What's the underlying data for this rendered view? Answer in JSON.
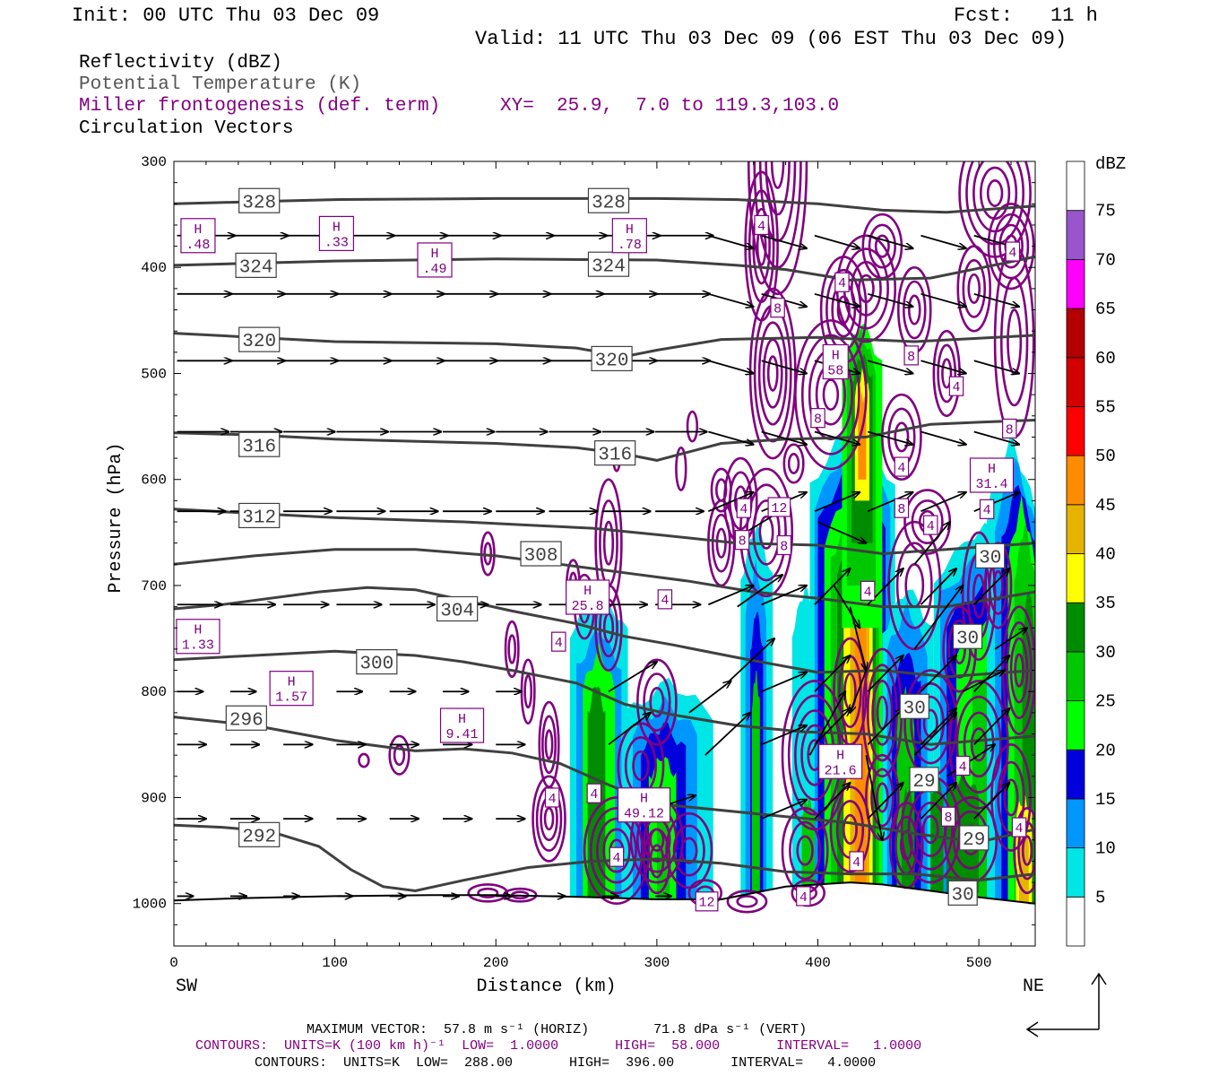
{
  "header": {
    "init": "Init: 00 UTC Thu 03 Dec 09",
    "fcst_label": "Fcst:",
    "fcst_value": "11 h",
    "valid": "Valid: 11 UTC Thu 03 Dec 09 (06 EST Thu 03 Dec 09)"
  },
  "fields": {
    "reflectivity": "Reflectivity (dBZ)",
    "theta": "Potential Temperature (K)",
    "frontogenesis": "Miller frontogenesis (def. term)",
    "xy": "XY=  25.9,  7.0 to 119.3,103.0",
    "vectors": "Circulation Vectors"
  },
  "footer": {
    "max_vector": "MAXIMUM VECTOR:  57.8 m s⁻¹ (HORIZ)        71.8 dPa s⁻¹ (VERT)",
    "contours_fronto": "CONTOURS:  UNITS=K (100 km h)⁻¹  LOW=  1.0000       HIGH=  58.000       INTERVAL=   1.0000",
    "contours_theta": "CONTOURS:  UNITS=K  LOW=  288.00       HIGH=  396.00       INTERVAL=   4.0000"
  },
  "colors": {
    "theta": "#404040",
    "fronto": "#800080",
    "vector": "#000000"
  },
  "chart_data": {
    "type": "cross-section",
    "xlabel": "Distance (km)",
    "ylabel": "Pressure (hPa)",
    "xlim": [
      0,
      535
    ],
    "ylim": [
      1040,
      300
    ],
    "x_ticks": [
      0,
      100,
      200,
      300,
      400,
      500
    ],
    "y_ticks": [
      300,
      400,
      500,
      600,
      700,
      800,
      900,
      1000
    ],
    "x_end_labels": {
      "left": "SW",
      "right": "NE"
    },
    "colorbar": {
      "unit": "dBZ",
      "levels": [
        5,
        10,
        15,
        20,
        25,
        30,
        35,
        40,
        45,
        50,
        55,
        60,
        65,
        70,
        75
      ],
      "colors": [
        "#ffffff",
        "#00e5e5",
        "#0096ff",
        "#0000dd",
        "#00ff00",
        "#00c800",
        "#008c00",
        "#ffff00",
        "#e6b400",
        "#ff8c00",
        "#ff0000",
        "#d20000",
        "#b40000",
        "#ff00ff",
        "#9955cc"
      ]
    },
    "theta_contours": [
      {
        "value": 328,
        "points": [
          [
            0,
            340
          ],
          [
            50,
            338
          ],
          [
            100,
            336
          ],
          [
            200,
            335
          ],
          [
            300,
            335
          ],
          [
            350,
            336
          ],
          [
            400,
            340
          ],
          [
            440,
            346
          ],
          [
            480,
            348
          ],
          [
            535,
            342
          ]
        ]
      },
      {
        "value": 324,
        "points": [
          [
            0,
            398
          ],
          [
            50,
            396
          ],
          [
            100,
            394
          ],
          [
            200,
            392
          ],
          [
            300,
            393
          ],
          [
            350,
            398
          ],
          [
            380,
            402
          ],
          [
            420,
            412
          ],
          [
            470,
            410
          ],
          [
            535,
            390
          ]
        ]
      },
      {
        "value": 320,
        "points": [
          [
            0,
            462
          ],
          [
            50,
            466
          ],
          [
            100,
            470
          ],
          [
            200,
            472
          ],
          [
            250,
            476
          ],
          [
            280,
            484
          ],
          [
            300,
            478
          ],
          [
            340,
            468
          ],
          [
            400,
            466
          ],
          [
            460,
            470
          ],
          [
            535,
            464
          ]
        ]
      },
      {
        "value": 316,
        "points": [
          [
            0,
            556
          ],
          [
            50,
            558
          ],
          [
            100,
            562
          ],
          [
            200,
            566
          ],
          [
            250,
            570
          ],
          [
            280,
            576
          ],
          [
            300,
            582
          ],
          [
            340,
            566
          ],
          [
            380,
            562
          ],
          [
            430,
            560
          ],
          [
            470,
            548
          ],
          [
            500,
            546
          ],
          [
            535,
            544
          ]
        ]
      },
      {
        "value": 312,
        "points": [
          [
            0,
            628
          ],
          [
            50,
            632
          ],
          [
            100,
            636
          ],
          [
            180,
            640
          ],
          [
            220,
            643
          ],
          [
            260,
            646
          ],
          [
            300,
            652
          ],
          [
            350,
            660
          ],
          [
            400,
            662
          ],
          [
            440,
            670
          ],
          [
            480,
            666
          ],
          [
            535,
            660
          ]
        ]
      },
      {
        "value": 308,
        "points": [
          [
            0,
            680
          ],
          [
            50,
            672
          ],
          [
            100,
            666
          ],
          [
            150,
            666
          ],
          [
            200,
            672
          ],
          [
            240,
            680
          ],
          [
            280,
            688
          ],
          [
            320,
            696
          ],
          [
            360,
            706
          ],
          [
            400,
            712
          ],
          [
            440,
            720
          ],
          [
            480,
            720
          ],
          [
            535,
            706
          ]
        ]
      },
      {
        "value": 304,
        "points": [
          [
            0,
            722
          ],
          [
            30,
            718
          ],
          [
            60,
            712
          ],
          [
            90,
            706
          ],
          [
            120,
            702
          ],
          [
            150,
            704
          ],
          [
            180,
            714
          ],
          [
            210,
            724
          ],
          [
            250,
            736
          ],
          [
            280,
            748
          ],
          [
            310,
            756
          ],
          [
            350,
            768
          ],
          [
            400,
            782
          ],
          [
            440,
            780
          ],
          [
            480,
            786
          ],
          [
            535,
            780
          ]
        ]
      },
      {
        "value": 300,
        "points": [
          [
            0,
            770
          ],
          [
            50,
            766
          ],
          [
            100,
            762
          ],
          [
            150,
            766
          ],
          [
            180,
            772
          ],
          [
            210,
            780
          ],
          [
            250,
            792
          ],
          [
            280,
            812
          ],
          [
            310,
            822
          ],
          [
            350,
            832
          ],
          [
            390,
            838
          ],
          [
            430,
            840
          ],
          [
            470,
            850
          ],
          [
            535,
            842
          ]
        ]
      },
      {
        "value": 296,
        "points": [
          [
            0,
            824
          ],
          [
            50,
            832
          ],
          [
            100,
            846
          ],
          [
            150,
            856
          ],
          [
            180,
            854
          ],
          [
            210,
            858
          ],
          [
            240,
            868
          ],
          [
            270,
            888
          ],
          [
            300,
            906
          ],
          [
            340,
            912
          ],
          [
            380,
            918
          ],
          [
            420,
            924
          ],
          [
            460,
            934
          ],
          [
            500,
            942
          ],
          [
            535,
            930
          ]
        ]
      },
      {
        "value": 292,
        "points": [
          [
            0,
            926
          ],
          [
            30,
            928
          ],
          [
            60,
            932
          ],
          [
            90,
            946
          ],
          [
            110,
            968
          ],
          [
            130,
            984
          ],
          [
            150,
            988
          ],
          [
            180,
            978
          ],
          [
            220,
            966
          ],
          [
            260,
            960
          ],
          [
            300,
            958
          ],
          [
            340,
            962
          ],
          [
            380,
            970
          ],
          [
            420,
            972
          ],
          [
            460,
            972
          ],
          [
            500,
            978
          ],
          [
            535,
            972
          ]
        ]
      }
    ],
    "theta_labels": [
      {
        "text": "328",
        "x": 53,
        "p": 337
      },
      {
        "text": "328",
        "x": 270,
        "p": 337
      },
      {
        "text": "324",
        "x": 51,
        "p": 398
      },
      {
        "text": "324",
        "x": 270,
        "p": 397
      },
      {
        "text": "320",
        "x": 53,
        "p": 468
      },
      {
        "text": "320",
        "x": 272,
        "p": 486
      },
      {
        "text": "316",
        "x": 53,
        "p": 567
      },
      {
        "text": "316",
        "x": 274,
        "p": 575
      },
      {
        "text": "312",
        "x": 53,
        "p": 634
      },
      {
        "text": "308",
        "x": 228,
        "p": 670
      },
      {
        "text": "304",
        "x": 176,
        "p": 722
      },
      {
        "text": "300",
        "x": 126,
        "p": 772
      },
      {
        "text": "296",
        "x": 45,
        "p": 825
      },
      {
        "text": "292",
        "x": 53,
        "p": 935
      },
      {
        "text": "30",
        "x": 507,
        "p": 672
      },
      {
        "text": "30",
        "x": 493,
        "p": 748
      },
      {
        "text": "30",
        "x": 460,
        "p": 814
      },
      {
        "text": "29",
        "x": 497,
        "p": 938
      },
      {
        "text": "29",
        "x": 466,
        "p": 883
      },
      {
        "text": "30",
        "x": 490,
        "p": 990
      }
    ],
    "fronto_labels": [
      {
        "text": "4",
        "x": 365,
        "p": 360
      },
      {
        "text": "8",
        "x": 375,
        "p": 438
      },
      {
        "text": "4",
        "x": 415,
        "p": 414
      },
      {
        "text": "8",
        "x": 458,
        "p": 483
      },
      {
        "text": "4",
        "x": 486,
        "p": 512
      },
      {
        "text": "8",
        "x": 400,
        "p": 542
      },
      {
        "text": "8",
        "x": 519,
        "p": 552
      },
      {
        "text": "4",
        "x": 452,
        "p": 588
      },
      {
        "text": "4",
        "x": 354,
        "p": 627
      },
      {
        "text": "12",
        "x": 376,
        "p": 626
      },
      {
        "text": "8",
        "x": 452,
        "p": 627
      },
      {
        "text": "4",
        "x": 470,
        "p": 643
      },
      {
        "text": "4",
        "x": 505,
        "p": 628
      },
      {
        "text": "8",
        "x": 353,
        "p": 657
      },
      {
        "text": "8",
        "x": 379,
        "p": 662
      },
      {
        "text": "4",
        "x": 305,
        "p": 713
      },
      {
        "text": "4",
        "x": 431,
        "p": 705
      },
      {
        "text": "4",
        "x": 239,
        "p": 753
      },
      {
        "text": "4",
        "x": 235,
        "p": 900
      },
      {
        "text": "4",
        "x": 261,
        "p": 896
      },
      {
        "text": "4",
        "x": 275,
        "p": 956
      },
      {
        "text": "4",
        "x": 490,
        "p": 870
      },
      {
        "text": "8",
        "x": 481,
        "p": 918
      },
      {
        "text": "4",
        "x": 525,
        "p": 928
      },
      {
        "text": "4",
        "x": 424,
        "p": 960
      },
      {
        "text": "4",
        "x": 391,
        "p": 993
      },
      {
        "text": "12",
        "x": 331,
        "p": 998
      },
      {
        "text": "4",
        "x": 521,
        "p": 385
      }
    ],
    "h_markers": [
      {
        "value": ".48",
        "x": 15,
        "p": 370
      },
      {
        "value": ".33",
        "x": 101,
        "p": 368
      },
      {
        "value": ".49",
        "x": 162,
        "p": 393
      },
      {
        "value": ".78",
        "x": 283,
        "p": 370
      },
      {
        "value": "25.8",
        "x": 257,
        "p": 711
      },
      {
        "value": "1.33",
        "x": 15,
        "p": 748
      },
      {
        "value": "1.57",
        "x": 73,
        "p": 797
      },
      {
        "value": "9.41",
        "x": 179,
        "p": 832
      },
      {
        "value": "49.12",
        "x": 292,
        "p": 907
      },
      {
        "value": "58",
        "x": 411,
        "p": 489
      },
      {
        "value": "31.4",
        "x": 508,
        "p": 596
      },
      {
        "value": "21.6",
        "x": 414,
        "p": 866
      }
    ],
    "max_vector": {
      "horiz_m_s": 57.8,
      "vert_dPa_s": 71.8
    },
    "fronto_contours": {
      "low": 1.0,
      "high": 58.0,
      "interval": 1.0
    },
    "theta_contour_params": {
      "low": 288.0,
      "high": 396.0,
      "interval": 4.0
    }
  }
}
